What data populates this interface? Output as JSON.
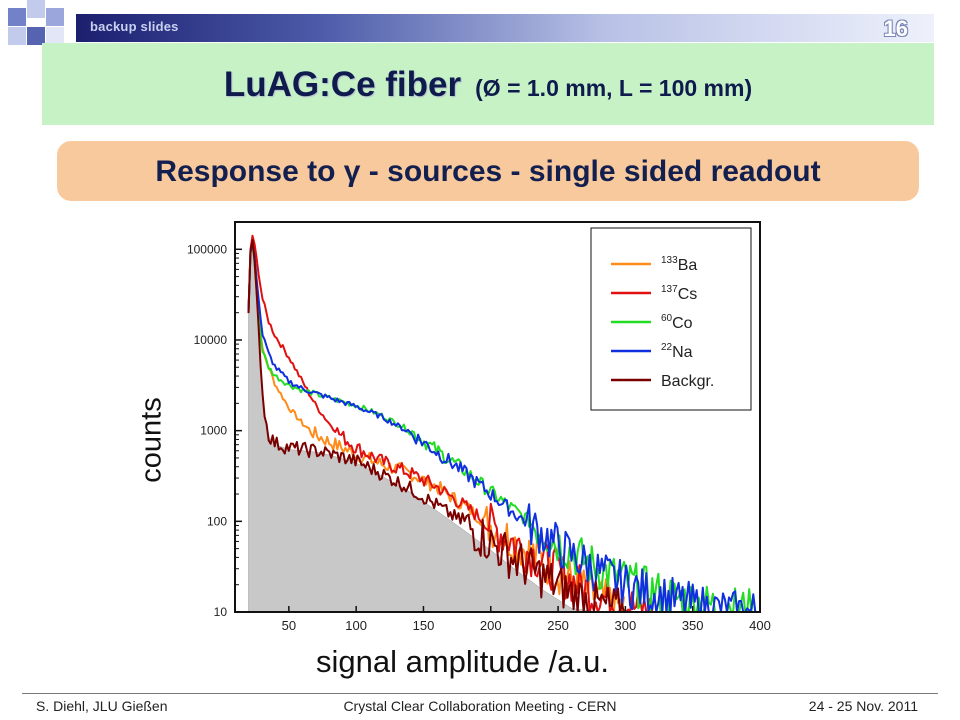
{
  "header": {
    "section_label": "backup slides",
    "page_number": "16",
    "title_main": "LuAG:Ce fiber",
    "title_sub": "(Ø = 1.0 mm, L = 100 mm)",
    "subtitle": "Response to γ - sources  -  single sided readout"
  },
  "colors": {
    "title_band": "#c6f2c6",
    "subtitle_band": "#f8c99c",
    "header_bar": "#1b1f6e",
    "decor_square": "#6d7ac0"
  },
  "chart_data": {
    "type": "line",
    "xlabel": "signal amplitude /a.u.",
    "ylabel": "counts",
    "xlim": [
      10,
      400
    ],
    "ylim": [
      10,
      200000
    ],
    "y_scale": "log",
    "x_ticks": [
      50,
      100,
      150,
      200,
      250,
      300,
      350,
      400
    ],
    "y_ticks": [
      10,
      100,
      1000,
      10000,
      100000
    ],
    "y_tick_labels": [
      "10",
      "100",
      "1000",
      "10000",
      "100000"
    ],
    "legend_position": "top-right",
    "series": [
      {
        "name": "133Ba",
        "label_super": "133",
        "label_base": "Ba",
        "color": "#ff8c1a",
        "x": [
          20,
          22,
          25,
          28,
          30,
          35,
          40,
          50,
          60,
          70,
          80,
          100,
          120,
          140,
          160,
          180,
          200,
          220,
          240,
          260,
          280,
          300
        ],
        "y": [
          20000,
          160000,
          80000,
          20000,
          8000,
          5000,
          3200,
          1800,
          1200,
          900,
          750,
          550,
          420,
          340,
          240,
          150,
          90,
          55,
          35,
          22,
          14,
          11
        ]
      },
      {
        "name": "137Cs",
        "label_super": "137",
        "label_base": "Cs",
        "color": "#e01010",
        "x": [
          20,
          22,
          25,
          28,
          30,
          35,
          40,
          50,
          60,
          70,
          80,
          90,
          100,
          120,
          140,
          160,
          180,
          200,
          220,
          240,
          260,
          280,
          300,
          320
        ],
        "y": [
          20000,
          170000,
          100000,
          50000,
          30000,
          16000,
          11000,
          6500,
          3500,
          1900,
          1200,
          850,
          650,
          450,
          340,
          240,
          150,
          90,
          55,
          35,
          22,
          15,
          12,
          10
        ]
      },
      {
        "name": "60Co",
        "label_super": "60",
        "label_base": "Co",
        "color": "#22dd22",
        "x": [
          20,
          22,
          25,
          28,
          30,
          35,
          40,
          50,
          60,
          80,
          100,
          120,
          140,
          160,
          180,
          200,
          220,
          240,
          260,
          280,
          300,
          320,
          340,
          360,
          380,
          400
        ],
        "y": [
          20000,
          150000,
          60000,
          15000,
          8000,
          5000,
          4000,
          3200,
          2800,
          2300,
          1900,
          1450,
          1000,
          600,
          370,
          210,
          125,
          75,
          45,
          30,
          22,
          17,
          14,
          12,
          11,
          10
        ]
      },
      {
        "name": "22Na",
        "label_super": "22",
        "label_base": "Na",
        "color": "#1030e0",
        "x": [
          20,
          22,
          25,
          28,
          30,
          35,
          40,
          50,
          60,
          80,
          100,
          120,
          140,
          160,
          180,
          200,
          220,
          240,
          260,
          280,
          300,
          320,
          340,
          360,
          380,
          400
        ],
        "y": [
          20000,
          150000,
          70000,
          25000,
          12000,
          7000,
          5000,
          3500,
          2900,
          2300,
          1850,
          1400,
          950,
          580,
          350,
          200,
          115,
          70,
          42,
          28,
          20,
          16,
          13,
          11,
          10,
          10
        ]
      },
      {
        "name": "Backgr.",
        "label_super": "",
        "label_base": "Backgr.",
        "color": "#7a0000",
        "x": [
          20,
          22,
          25,
          28,
          30,
          32,
          35,
          40,
          50,
          60,
          70,
          80,
          100,
          120,
          140,
          160,
          180,
          200,
          220,
          240,
          260,
          280,
          300
        ],
        "y": [
          20000,
          180000,
          60000,
          10000,
          3000,
          1500,
          900,
          720,
          650,
          620,
          600,
          560,
          460,
          330,
          230,
          150,
          95,
          58,
          36,
          24,
          16,
          12,
          10
        ]
      },
      {
        "name": "",
        "label_super": "",
        "label_base": "",
        "color": "#c8c8c8",
        "x": [
          20,
          22,
          25,
          28,
          30,
          32,
          35,
          40,
          50,
          60,
          70,
          80,
          100,
          120,
          140,
          160,
          180,
          200,
          220,
          240,
          260,
          280
        ],
        "y": [
          18000,
          150000,
          50000,
          9000,
          2800,
          1400,
          850,
          700,
          620,
          600,
          580,
          540,
          440,
          310,
          210,
          130,
          80,
          48,
          28,
          17,
          11,
          10
        ]
      }
    ]
  },
  "footer": {
    "left": "S. Diehl, JLU Gießen",
    "center": "Crystal Clear Collaboration Meeting - CERN",
    "right": "24 - 25 Nov. 2011"
  }
}
